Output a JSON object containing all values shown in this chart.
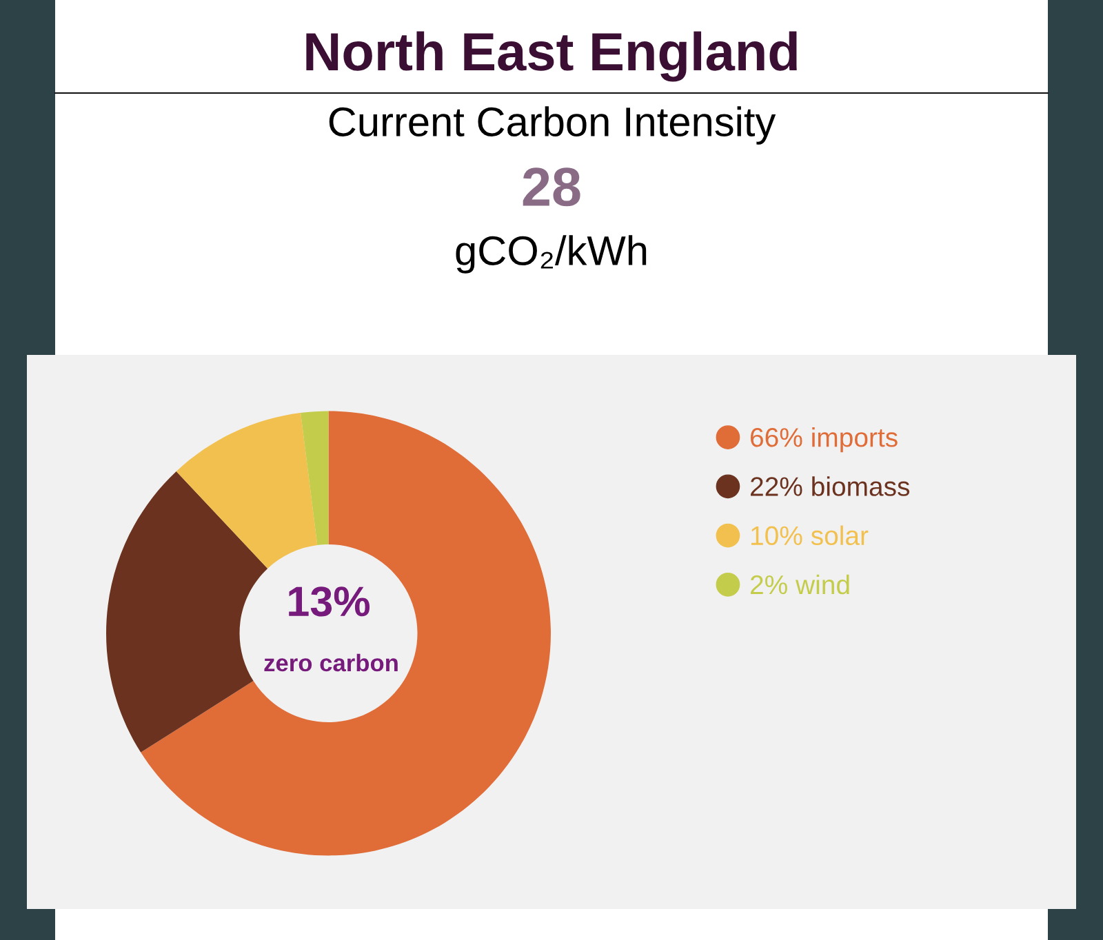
{
  "chart_data": {
    "type": "donut",
    "title": "North East England",
    "subtitle": "Current Carbon Intensity",
    "annotations": [
      "28",
      "gCO₂/kWh",
      "13%",
      "zero carbon"
    ],
    "categories": [
      "66% imports",
      "22% biomass",
      "10% solar",
      "2% wind"
    ],
    "values": [
      66,
      22,
      10,
      2
    ],
    "colors": [
      "#e06c38",
      "#6b331f",
      "#f2c04e",
      "#c4cc4b"
    ],
    "legend": "top right"
  }
}
